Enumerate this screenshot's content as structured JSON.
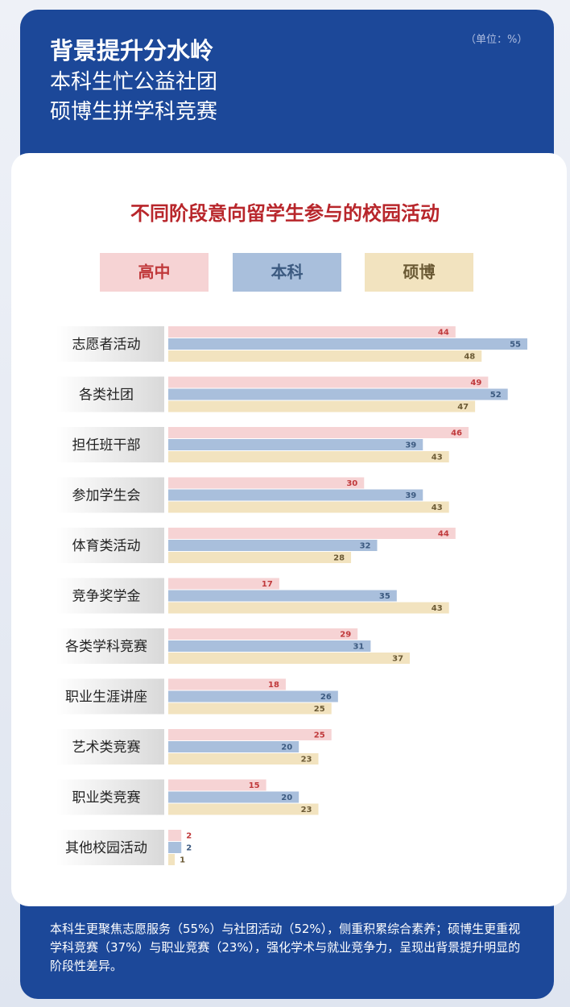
{
  "header": {
    "title": "背景提升分水岭",
    "subtitle_lines": [
      "本科生忙公益社团",
      "硕博生拼学科竞赛"
    ],
    "unit": "（单位：%）"
  },
  "chart_data": {
    "type": "bar",
    "orientation": "horizontal",
    "title": "不同阶段意向留学生参与的校园活动",
    "categories": [
      "志愿者活动",
      "各类社团",
      "担任班干部",
      "参加学生会",
      "体育类活动",
      "竞争奖学金",
      "各类学科竞赛",
      "职业生涯讲座",
      "艺术类竞赛",
      "职业类竞赛",
      "其他校园活动"
    ],
    "series": [
      {
        "name": "高中",
        "color": "#f6d3d4",
        "label_color": "#c0393b",
        "values": [
          44,
          49,
          46,
          30,
          44,
          17,
          29,
          18,
          25,
          15,
          2
        ]
      },
      {
        "name": "本科",
        "color": "#a9bfdc",
        "label_color": "#3c5a80",
        "values": [
          55,
          52,
          39,
          39,
          32,
          35,
          31,
          26,
          20,
          20,
          2
        ]
      },
      {
        "name": "硕博",
        "color": "#f2e3bf",
        "label_color": "#6b5a35",
        "values": [
          48,
          47,
          43,
          43,
          28,
          43,
          37,
          25,
          23,
          23,
          1
        ]
      }
    ]
  },
  "footer": {
    "text": "本科生更聚焦志愿服务（55%）与社团活动（52%），侧重积累综合素养；硕博生更重视学科竞赛（37%）与职业竞赛（23%），强化学术与就业竞争力，呈现出背景提升明显的阶段性差异。"
  }
}
